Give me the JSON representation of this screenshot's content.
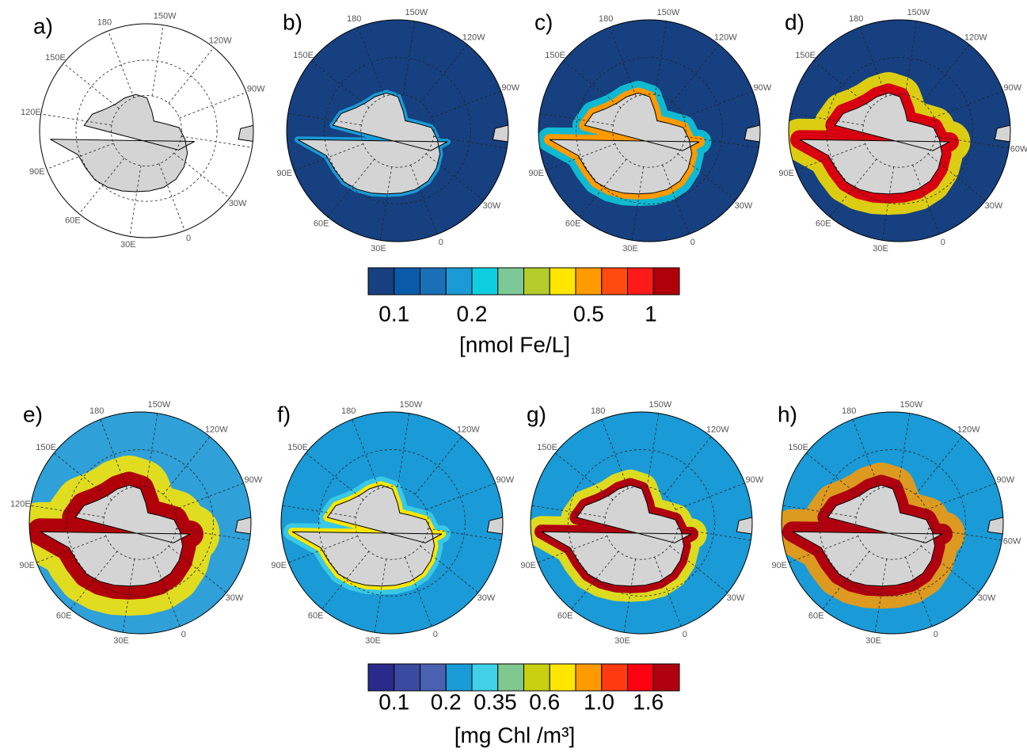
{
  "panels": [
    {
      "label": "a)",
      "meridians": [
        "0",
        "30W",
        null,
        "90W",
        "120W",
        "150W",
        "180",
        "150E",
        "120E",
        "90E",
        "60E",
        "30E"
      ]
    },
    {
      "label": "b)",
      "meridians": [
        "0",
        "30W",
        null,
        "90W",
        "120W",
        "150W",
        "180",
        "150E",
        null,
        "90E",
        "60E",
        "30E"
      ]
    },
    {
      "label": "c)",
      "meridians": [
        "0",
        "30W",
        null,
        "90W",
        "120W",
        "150W",
        "180",
        "150E",
        null,
        "90E",
        "60E",
        "30E"
      ]
    },
    {
      "label": "d)",
      "meridians": [
        "0",
        "30W",
        "60W",
        "90W",
        "120W",
        "150W",
        "180",
        "150E",
        null,
        "90E",
        "60E",
        "30E"
      ]
    },
    {
      "label": "e)",
      "meridians": [
        "0",
        "30W",
        null,
        "90W",
        "120W",
        "150W",
        "180",
        "150E",
        "120E",
        "90E",
        "60E",
        "30E"
      ]
    },
    {
      "label": "f)",
      "meridians": [
        "0",
        "30W",
        null,
        "90W",
        "120W",
        "150W",
        "180",
        "150E",
        null,
        "90E",
        "60E",
        "30E"
      ]
    },
    {
      "label": "g)",
      "meridians": [
        "0",
        "30W",
        null,
        "90W",
        "120W",
        "150W",
        "180",
        "150E",
        null,
        "90E",
        "60E",
        "30E"
      ]
    },
    {
      "label": "h)",
      "meridians": [
        "0",
        "30W",
        "60W",
        "90W",
        "120W",
        "150W",
        "180",
        "150E",
        null,
        "90E",
        "60E",
        "30E"
      ]
    }
  ],
  "colorbars": [
    {
      "colors": [
        "#16407f",
        "#0a5aaa",
        "#1a6fb5",
        "#1a9ad6",
        "#0ecfe0",
        "#7cc896",
        "#b5cc2a",
        "#ffe600",
        "#ff9a00",
        "#ff4a10",
        "#ff1a1a",
        "#b0000a"
      ],
      "ticks": [
        "0.1",
        "0.2",
        "0.5",
        "1"
      ],
      "unit": "[nmol Fe/L]"
    },
    {
      "colors": [
        "#2a2a8a",
        "#3a4aa0",
        "#4a60b0",
        "#1a9ad6",
        "#40d0e8",
        "#80c890",
        "#c8d010",
        "#ffe600",
        "#ff9a00",
        "#ff3a10",
        "#ff0010",
        "#b00010"
      ],
      "ticks": [
        "0.1",
        "0.2",
        "0.35",
        "0.6",
        "1.0",
        "1.6"
      ],
      "unit": "[mg Chl /m³]"
    }
  ]
}
